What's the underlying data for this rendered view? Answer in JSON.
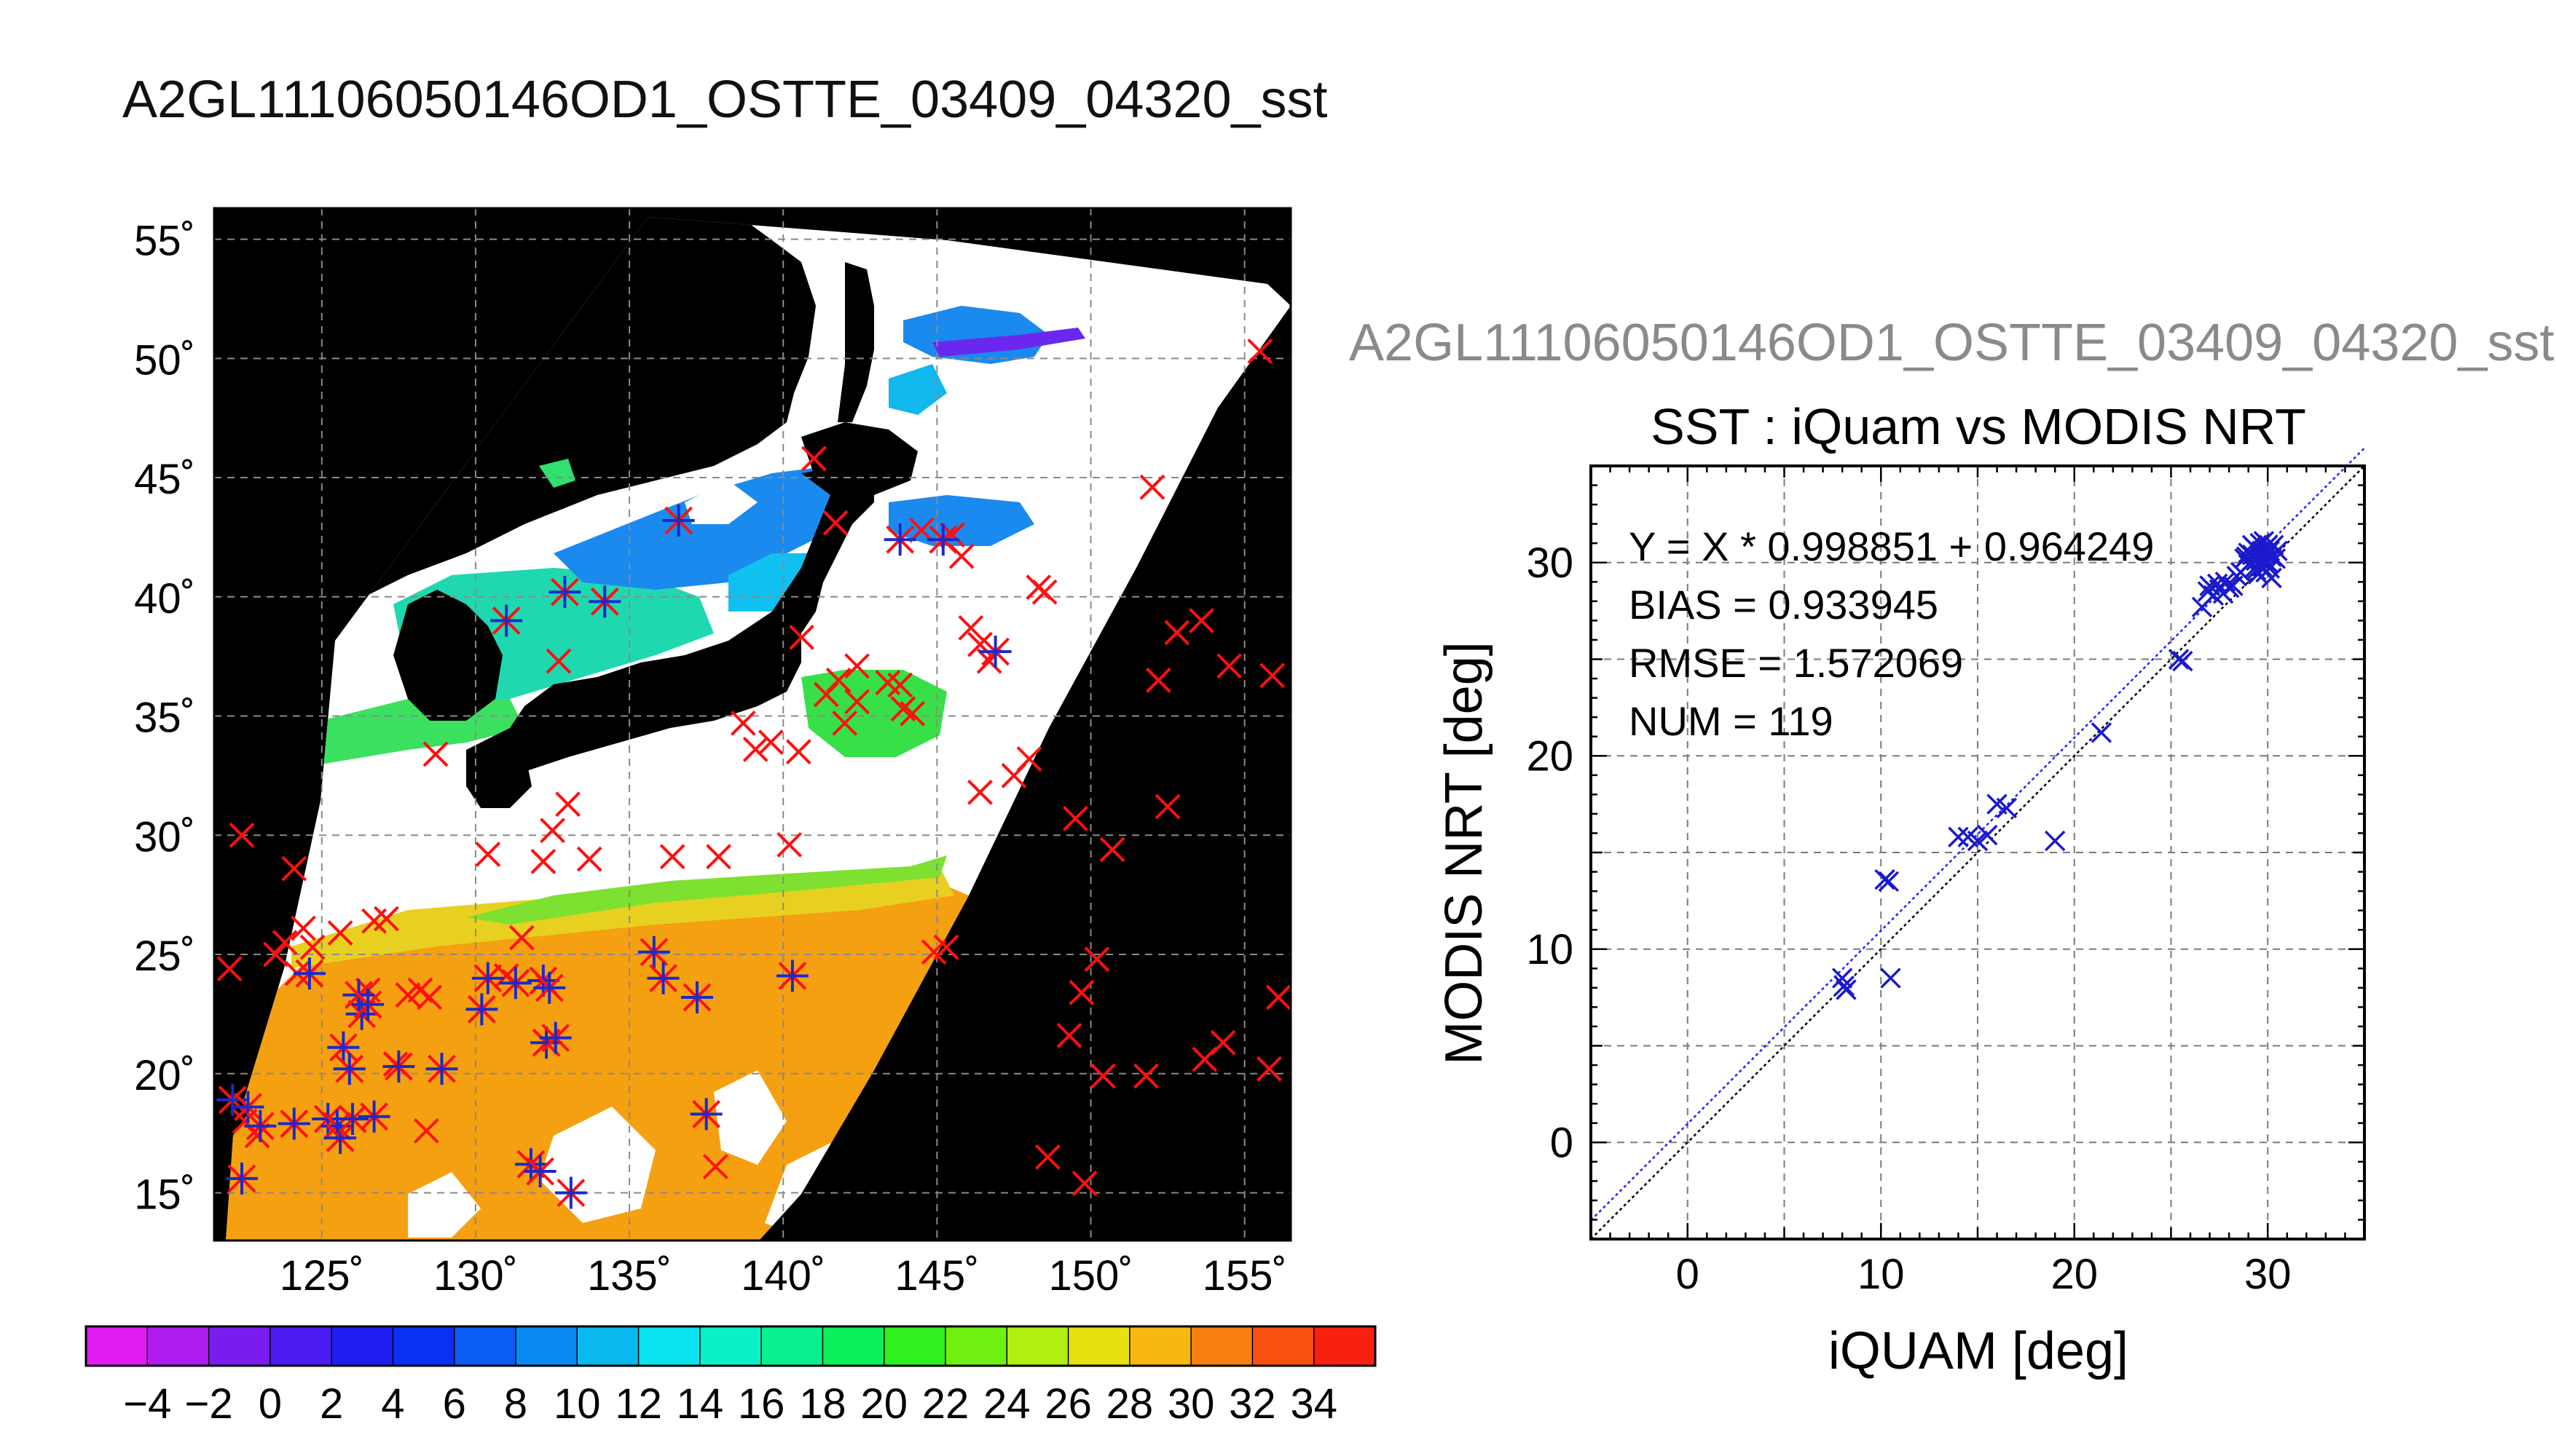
{
  "header": {
    "title": "A2GL11106050146OD1_OSTTE_03409_04320_sst",
    "scatter_header": "A2GL11106050146OD1_OSTTE_03409_04320_sst"
  },
  "colors": {
    "red_marker": "#ff1010",
    "blue_marker": "#1a2acc",
    "land": "#000000",
    "cloud": "#ffffff"
  },
  "map": {
    "lat_ticks": [
      "55˚",
      "50˚",
      "45˚",
      "40˚",
      "35˚",
      "30˚",
      "25˚",
      "20˚",
      "15˚"
    ],
    "lon_ticks": [
      "125˚",
      "130˚",
      "135˚",
      "140˚",
      "145˚",
      "150˚",
      "155˚"
    ],
    "colorbar": {
      "tick_labels": [
        "−4",
        "−2",
        "0",
        "2",
        "4",
        "6",
        "8",
        "10",
        "12",
        "14",
        "16",
        "18",
        "20",
        "22",
        "24",
        "26",
        "28",
        "30",
        "32",
        "34"
      ],
      "colors": [
        "#e01cf2",
        "#b01cf0",
        "#7a1cee",
        "#4a1cf0",
        "#1f1cf2",
        "#0a30f4",
        "#0a5cf2",
        "#0a8af0",
        "#0ab8f0",
        "#0ae4ee",
        "#0af0c8",
        "#0af090",
        "#0af05a",
        "#30f020",
        "#70f010",
        "#b0f010",
        "#e8e010",
        "#f8b810",
        "#f88010",
        "#f85010",
        "#f82010"
      ]
    },
    "red_crosses": [
      [
        122,
        24.4
      ],
      [
        122.4,
        30
      ],
      [
        122.5,
        18
      ],
      [
        122.9,
        17.4
      ],
      [
        123.5,
        25
      ],
      [
        123.8,
        25.5
      ],
      [
        124.2,
        24.2
      ],
      [
        124.4,
        26.1
      ],
      [
        124.1,
        28.6
      ],
      [
        124.7,
        25.3
      ],
      [
        125.6,
        25.9
      ],
      [
        126.5,
        23.5
      ],
      [
        126.7,
        26.4
      ],
      [
        127.1,
        26.5
      ],
      [
        127.4,
        20.4
      ],
      [
        127.8,
        23.3
      ],
      [
        128.2,
        23.5
      ],
      [
        128.4,
        17.6
      ],
      [
        128.5,
        23.2
      ],
      [
        128.7,
        33.4
      ],
      [
        130.2,
        22.7
      ],
      [
        130.4,
        29.2
      ],
      [
        131,
        24.1
      ],
      [
        131.5,
        25.7
      ],
      [
        132.2,
        28.9
      ],
      [
        132.5,
        30.2
      ],
      [
        132.7,
        37.3
      ],
      [
        133,
        31.3
      ],
      [
        133.7,
        29
      ],
      [
        136.4,
        29.1
      ],
      [
        137.9,
        29.1
      ],
      [
        137.8,
        16.1
      ],
      [
        138.7,
        34.7
      ],
      [
        139.1,
        33.6
      ],
      [
        139.6,
        33.9
      ],
      [
        140.2,
        29.6
      ],
      [
        140.5,
        33.5
      ],
      [
        140.6,
        38.3
      ],
      [
        141.4,
        35.9
      ],
      [
        141.8,
        36.5
      ],
      [
        141.7,
        43.1
      ],
      [
        141,
        45.8
      ],
      [
        142,
        34.7
      ],
      [
        142.4,
        37.1
      ],
      [
        142.4,
        35.6
      ],
      [
        143.4,
        36.4
      ],
      [
        143.8,
        36.3
      ],
      [
        143.9,
        35.3
      ],
      [
        144.2,
        35.1
      ],
      [
        144.5,
        42.8
      ],
      [
        144.9,
        25.1
      ],
      [
        145.3,
        25.3
      ],
      [
        145.5,
        42.6
      ],
      [
        145.8,
        41.7
      ],
      [
        146.1,
        38.7
      ],
      [
        146.4,
        38
      ],
      [
        146.4,
        31.8
      ],
      [
        146.7,
        37.3
      ],
      [
        147.5,
        32.5
      ],
      [
        148,
        33.2
      ],
      [
        148.3,
        40.4
      ],
      [
        148.5,
        40.2
      ],
      [
        148.6,
        16.5
      ],
      [
        149.3,
        21.6
      ],
      [
        149.5,
        30.7
      ],
      [
        149.7,
        23.4
      ],
      [
        149.8,
        15.4
      ],
      [
        150.2,
        24.8
      ],
      [
        150.4,
        19.9
      ],
      [
        150.7,
        29.4
      ],
      [
        151.8,
        19.9
      ],
      [
        152,
        44.6
      ],
      [
        152.2,
        36.5
      ],
      [
        152.5,
        31.2
      ],
      [
        152.8,
        38.5
      ],
      [
        153.6,
        39
      ],
      [
        153.7,
        20.6
      ],
      [
        154.3,
        21.3
      ],
      [
        154.5,
        37.1
      ],
      [
        155.5,
        50.3
      ],
      [
        155.8,
        20.2
      ],
      [
        155.9,
        36.7
      ],
      [
        156.1,
        23.2
      ]
    ],
    "blue_stars": [
      [
        122.1,
        18.9
      ],
      [
        122.4,
        15.6
      ],
      [
        122.6,
        18.6
      ],
      [
        123,
        17.8
      ],
      [
        124.1,
        17.9
      ],
      [
        124.6,
        24.2
      ],
      [
        125.2,
        18.1
      ],
      [
        125.5,
        17.8
      ],
      [
        125.6,
        17.3
      ],
      [
        125.7,
        21.1
      ],
      [
        125.9,
        20.2
      ],
      [
        126,
        18.1
      ],
      [
        126.3,
        22.5
      ],
      [
        126.2,
        23.3
      ],
      [
        126.5,
        22.9
      ],
      [
        126.7,
        18.2
      ],
      [
        127.5,
        20.3
      ],
      [
        128.9,
        20.2
      ],
      [
        130.2,
        22.7
      ],
      [
        130.4,
        24
      ],
      [
        131,
        39
      ],
      [
        131.3,
        23.8
      ],
      [
        131.8,
        16.2
      ],
      [
        132.1,
        15.9
      ],
      [
        132.2,
        23.9
      ],
      [
        132.4,
        23.6
      ],
      [
        132.3,
        21.3
      ],
      [
        132.6,
        21.5
      ],
      [
        132.9,
        40.2
      ],
      [
        133.1,
        15
      ],
      [
        134.2,
        39.8
      ],
      [
        135.8,
        25.1
      ],
      [
        136.1,
        24
      ],
      [
        136.6,
        43.2
      ],
      [
        137.2,
        23.2
      ],
      [
        137.5,
        18.3
      ],
      [
        140.3,
        24.1
      ],
      [
        143.8,
        42.4
      ],
      [
        145.2,
        42.4
      ],
      [
        146.9,
        37.7
      ]
    ],
    "color_regions": [
      {
        "name": "yellow-orange-south",
        "color": "#f5a010"
      },
      {
        "name": "green-band-east-china-sea",
        "color": "#7ee030"
      },
      {
        "name": "teal-sea-of-japan",
        "color": "#20d8c0"
      },
      {
        "name": "blue-north-sea-of-japan",
        "color": "#1a8aef"
      },
      {
        "name": "green-pacific-south-japan",
        "color": "#38e048"
      }
    ]
  },
  "chart_data": {
    "type": "scatter",
    "title": "SST : iQuam vs MODIS NRT",
    "xlabel": "iQUAM [deg]",
    "ylabel": "MODIS NRT [deg]",
    "xlim": [
      -5,
      35
    ],
    "ylim": [
      -5,
      35
    ],
    "xticks": [
      0,
      10,
      20,
      30
    ],
    "yticks": [
      0,
      10,
      20,
      30
    ],
    "grid": true,
    "series": [
      {
        "marker": "x",
        "color": "#1a1acc",
        "points": [
          [
            8,
            8.5
          ],
          [
            8.2,
            7.9
          ],
          [
            8.1,
            8.1
          ],
          [
            10.2,
            13.6
          ],
          [
            10.4,
            13.5
          ],
          [
            10.5,
            8.5
          ],
          [
            14,
            15.8
          ],
          [
            14.5,
            15.8
          ],
          [
            15,
            15.6
          ],
          [
            15.5,
            15.9
          ],
          [
            16,
            17.5
          ],
          [
            16.5,
            17.3
          ],
          [
            19,
            15.6
          ],
          [
            21.4,
            21.2
          ],
          [
            25.4,
            25
          ],
          [
            25.6,
            24.9
          ],
          [
            26.6,
            27.7
          ],
          [
            26.9,
            28.5
          ],
          [
            27,
            28.8
          ],
          [
            27.2,
            28.3
          ],
          [
            27.4,
            28.9
          ],
          [
            27.5,
            28.6
          ],
          [
            27.7,
            28.4
          ],
          [
            27.8,
            29
          ],
          [
            28,
            28.7
          ],
          [
            28.2,
            28.8
          ],
          [
            28.4,
            29.3
          ],
          [
            28.6,
            29.5
          ],
          [
            28.8,
            30.2
          ],
          [
            29,
            29.9
          ],
          [
            29,
            30.5
          ],
          [
            29.1,
            30
          ],
          [
            29.2,
            30.4
          ],
          [
            29.3,
            29.7
          ],
          [
            29.3,
            30.8
          ],
          [
            29.4,
            30.1
          ],
          [
            29.5,
            30.6
          ],
          [
            29.5,
            29.4
          ],
          [
            29.6,
            30.3
          ],
          [
            29.6,
            31
          ],
          [
            29.7,
            29.8
          ],
          [
            29.7,
            30.6
          ],
          [
            29.8,
            30.1
          ],
          [
            29.8,
            31.1
          ],
          [
            29.9,
            29.5
          ],
          [
            29.9,
            30.4
          ],
          [
            30,
            30.9
          ],
          [
            30,
            30
          ],
          [
            30.1,
            30.6
          ],
          [
            30.1,
            29.7
          ],
          [
            30.2,
            30.3
          ],
          [
            30.3,
            30.9
          ],
          [
            30.4,
            30.2
          ],
          [
            30.5,
            30.6
          ],
          [
            29.4,
            29.6
          ],
          [
            29.2,
            30.9
          ],
          [
            28.9,
            30.3
          ],
          [
            30.2,
            29.2
          ]
        ]
      }
    ],
    "annotations": [
      "Y = X * 0.998851 + 0.964249",
      "BIAS = 0.933945",
      "RMSE = 1.572069",
      "NUM = 119"
    ],
    "fit_line": {
      "slope": 0.998851,
      "intercept": 0.964249
    }
  }
}
